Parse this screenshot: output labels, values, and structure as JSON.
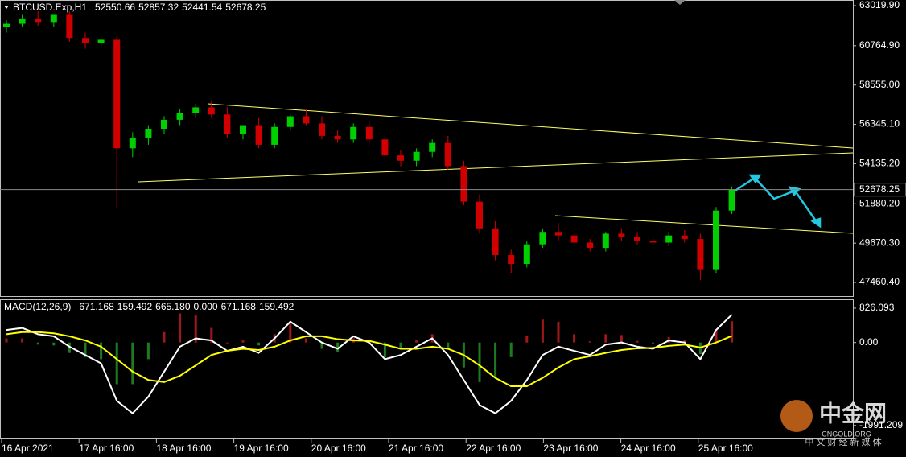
{
  "chart_data": [
    {
      "type": "candlestick",
      "title": "BTCUSD.Exp,H1",
      "header_values": [
        52550.66,
        52857.32,
        52441.54,
        52678.25
      ],
      "x_labels": [
        "16 Apr 2021",
        "17 Apr 16:00",
        "18 Apr 16:00",
        "19 Apr 16:00",
        "20 Apr 16:00",
        "21 Apr 16:00",
        "22 Apr 16:00",
        "23 Apr 16:00",
        "24 Apr 16:00",
        "25 Apr 16:00"
      ],
      "open": [
        61800,
        62000,
        62300,
        62100,
        62500,
        61200,
        60900,
        61100,
        55000,
        55600,
        56100,
        56600,
        57000,
        57300,
        56900,
        55800,
        56300,
        55200,
        56200,
        56800,
        56400,
        55700,
        55500,
        56200,
        55500,
        54600,
        54300,
        54800,
        55300,
        54000,
        52000,
        50500,
        49000,
        48500,
        49600,
        50300,
        50100,
        49700,
        49400,
        50200,
        50000,
        49800,
        49700,
        50100,
        49900,
        48200,
        51500
      ],
      "high": [
        62200,
        62500,
        62700,
        62400,
        62700,
        61500,
        61300,
        61300,
        55900,
        56300,
        56800,
        57200,
        57500,
        57700,
        57300,
        56300,
        56700,
        56400,
        56900,
        57200,
        56800,
        56000,
        56400,
        56500,
        55800,
        54900,
        55000,
        55500,
        55700,
        54300,
        52400,
        50900,
        49300,
        49800,
        50500,
        50800,
        50400,
        49900,
        50300,
        50500,
        50300,
        50000,
        50300,
        50400,
        50200,
        51700,
        52857.32
      ],
      "low": [
        61500,
        61800,
        61900,
        61800,
        61000,
        60600,
        60700,
        51600,
        54500,
        55200,
        55800,
        56300,
        56700,
        56700,
        55600,
        55500,
        55000,
        55000,
        56000,
        56300,
        55500,
        55300,
        55300,
        55300,
        54300,
        54000,
        54000,
        54500,
        53800,
        51800,
        50200,
        48700,
        48000,
        48300,
        49400,
        49800,
        49500,
        49200,
        49200,
        49800,
        49600,
        49500,
        49500,
        49700,
        47600,
        48000,
        51300
      ],
      "close": [
        62000,
        62300,
        62100,
        62500,
        61200,
        60900,
        61100,
        55000,
        55600,
        56100,
        56600,
        57000,
        57300,
        56900,
        55800,
        56300,
        55200,
        56200,
        56800,
        56400,
        55700,
        55500,
        56200,
        55500,
        54600,
        54300,
        54800,
        55300,
        54000,
        52000,
        50500,
        49000,
        48500,
        49600,
        50300,
        50100,
        49700,
        49400,
        50200,
        50000,
        49800,
        49700,
        50100,
        49900,
        48200,
        51500,
        52678.25
      ],
      "up_color": "#00d000",
      "down_color": "#d00000",
      "ylim": [
        46691.5,
        63336.5
      ],
      "yticks": [
        {
          "value": 63019.9,
          "label": "63019.90"
        },
        {
          "value": 60764.9,
          "label": "60764.90"
        },
        {
          "value": 58555,
          "label": "58555.00"
        },
        {
          "value": 56345.1,
          "label": "56345.10"
        },
        {
          "value": 54135.2,
          "label": "54135.20"
        },
        {
          "value": 51880.2,
          "label": "51880.20"
        },
        {
          "value": 49670.3,
          "label": "49670.30"
        },
        {
          "value": 47460.4,
          "label": "47460.40"
        }
      ],
      "current_price": 52678.25
    },
    {
      "type": "macd",
      "title": "MACD(12,26,9)",
      "header_values": [
        671.168,
        159.492,
        {
          "value": 665.18,
          "label": "665.180"
        },
        {
          "value": 0,
          "label": "0.000"
        },
        671.168,
        159.492
      ],
      "series": [
        {
          "name": "MACD",
          "color": "#ffffff",
          "values": [
            300,
            350,
            200,
            150,
            -100,
            -300,
            -500,
            -1400,
            -1700,
            -1300,
            -700,
            -100,
            100,
            50,
            -200,
            -100,
            -250,
            100,
            500,
            250,
            0,
            -150,
            150,
            0,
            -400,
            -300,
            -100,
            100,
            -300,
            -900,
            -1500,
            -1700,
            -1400,
            -900,
            -300,
            -100,
            -200,
            -300,
            -50,
            0,
            -100,
            -150,
            50,
            0,
            -400,
            300,
            671.168
          ]
        },
        {
          "name": "Signal",
          "color": "#ffff00",
          "values": [
            200,
            250,
            250,
            220,
            150,
            50,
            -100,
            -400,
            -700,
            -900,
            -950,
            -800,
            -550,
            -300,
            -200,
            -150,
            -180,
            -100,
            50,
            150,
            150,
            80,
            50,
            40,
            -50,
            -150,
            -150,
            -100,
            -150,
            -300,
            -550,
            -850,
            -1050,
            -1050,
            -850,
            -600,
            -400,
            -330,
            -250,
            -180,
            -140,
            -130,
            -80,
            -50,
            -120,
            0,
            159.492
          ]
        }
      ],
      "histogram": [
        100,
        100,
        -50,
        -70,
        -250,
        -350,
        -400,
        -1000,
        -1000,
        -400,
        250,
        700,
        650,
        350,
        0,
        50,
        -70,
        200,
        450,
        100,
        -150,
        -230,
        100,
        -40,
        -350,
        -150,
        50,
        200,
        -150,
        -600,
        -950,
        -850,
        -350,
        150,
        550,
        500,
        200,
        30,
        200,
        180,
        40,
        -20,
        130,
        50,
        -280,
        300,
        511.676
      ],
      "hist_up_color": "#a01818",
      "hist_down_color": "#1f7a1f",
      "ylim": [
        -2305,
        1018
      ],
      "yticks": [
        826.093,
        {
          "value": 0,
          "label": "0.00"
        },
        -1991.209
      ]
    }
  ],
  "watermark": {
    "name": "中金网",
    "site": "CNGOLD.ORG",
    "slogan": "中 文 财 经 新 媒 体"
  }
}
